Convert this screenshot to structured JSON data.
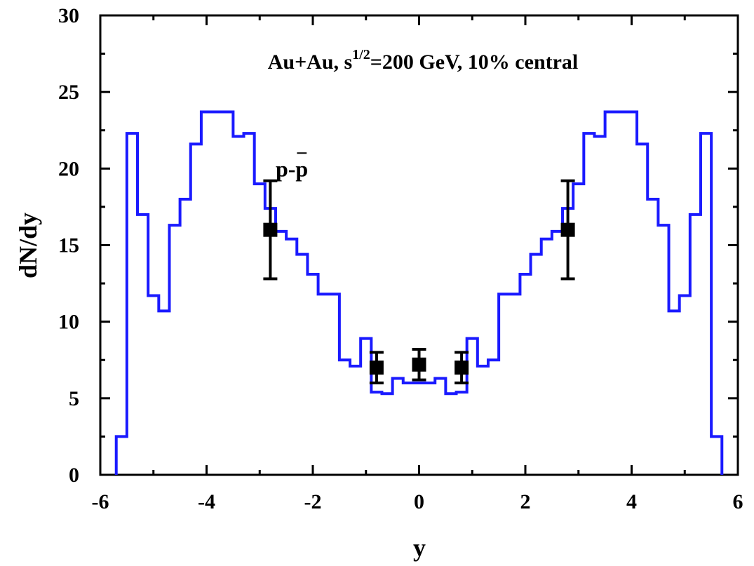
{
  "chart_data": {
    "type": "line",
    "title_parts": {
      "before": "Au+Au,  s",
      "superscript": "1/2",
      "after": "=200 GeV,  10% central"
    },
    "xlabel": "y",
    "ylabel": "dN/dy",
    "xlim": [
      -6,
      6
    ],
    "ylim": [
      0,
      30
    ],
    "x_ticks": [
      -6,
      -4,
      -2,
      0,
      2,
      4,
      6
    ],
    "x_tick_labels": [
      "-6",
      "-4",
      "-2",
      "0",
      "2",
      "4",
      "6"
    ],
    "y_ticks": [
      0,
      5,
      10,
      15,
      20,
      25,
      30
    ],
    "y_tick_labels": [
      "0",
      "5",
      "10",
      "15",
      "20",
      "25",
      "30"
    ],
    "grid": false,
    "series_label": {
      "text": "p-p",
      "overbar_on": "second-p",
      "x": -2.7,
      "y": 19.5
    },
    "colors": {
      "model": "#1a1aff",
      "data": "#000000"
    },
    "model_histogram": {
      "edges": [
        -5.7,
        -5.5,
        -5.3,
        -5.1,
        -4.9,
        -4.7,
        -4.5,
        -4.3,
        -4.1,
        -3.9,
        -3.7,
        -3.5,
        -3.3,
        -3.1,
        -2.9,
        -2.7,
        -2.5,
        -2.3,
        -2.1,
        -1.9,
        -1.7,
        -1.5,
        -1.3,
        -1.1,
        -0.9,
        -0.7,
        -0.5,
        -0.3,
        -0.1,
        0.1,
        0.3,
        0.5,
        0.7,
        0.9,
        1.1,
        1.3,
        1.5,
        1.7,
        1.9,
        2.1,
        2.3,
        2.5,
        2.7,
        2.9,
        3.1,
        3.3,
        3.5,
        3.7,
        3.9,
        4.1,
        4.3,
        4.5,
        4.7,
        4.9,
        5.1,
        5.3,
        5.5,
        5.7
      ],
      "values": [
        2.5,
        22.3,
        17.0,
        11.7,
        10.7,
        16.3,
        18.0,
        21.6,
        23.7,
        23.7,
        23.7,
        22.1,
        22.3,
        19.0,
        17.4,
        15.9,
        15.4,
        14.4,
        13.1,
        11.8,
        11.8,
        7.5,
        7.1,
        8.9,
        5.4,
        5.3,
        6.3,
        6.0,
        6.0,
        6.0,
        6.3,
        5.3,
        5.4,
        8.9,
        7.1,
        7.5,
        11.8,
        11.8,
        13.1,
        14.4,
        15.4,
        15.9,
        17.4,
        19.0,
        22.3,
        22.1,
        23.7,
        23.7,
        23.7,
        21.6,
        18.0,
        16.3,
        10.7,
        11.7,
        17.0,
        22.3,
        2.5
      ]
    },
    "data_points": [
      {
        "x": -2.8,
        "y": 16.0,
        "err": 3.2
      },
      {
        "x": -0.8,
        "y": 7.0,
        "err": 1.0
      },
      {
        "x": 0.0,
        "y": 7.2,
        "err": 1.0
      },
      {
        "x": 0.8,
        "y": 7.0,
        "err": 1.0
      },
      {
        "x": 2.8,
        "y": 16.0,
        "err": 3.2
      }
    ]
  }
}
